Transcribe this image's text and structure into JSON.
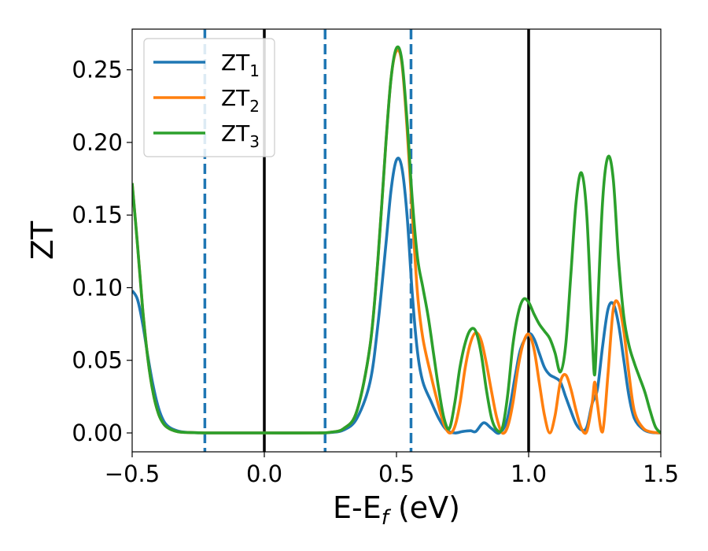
{
  "chart_data": {
    "type": "line",
    "title": "",
    "xlabel": {
      "main": "E-E",
      "sub": "f",
      "suffix": " (eV)"
    },
    "ylabel": "ZT",
    "xlim": [
      -0.5,
      1.5
    ],
    "ylim": [
      -0.013,
      0.278
    ],
    "xticks": [
      -0.5,
      0.0,
      0.5,
      1.0,
      1.5
    ],
    "xtick_labels": [
      "−0.5",
      "0.0",
      "0.5",
      "1.0",
      "1.5"
    ],
    "yticks": [
      0.0,
      0.05,
      0.1,
      0.15,
      0.2,
      0.25
    ],
    "ytick_labels": [
      "0.00",
      "0.05",
      "0.10",
      "0.15",
      "0.20",
      "0.25"
    ],
    "grid": false,
    "legend_position": "top-left",
    "series": [
      {
        "name": "ZT1",
        "label_main": "ZT",
        "label_sub": "1",
        "color": "#1f77b4",
        "x": [
          -0.5,
          -0.48,
          -0.46,
          -0.44,
          -0.42,
          -0.4,
          -0.38,
          -0.36,
          -0.33,
          -0.3,
          -0.25,
          -0.2,
          0.0,
          0.2,
          0.25,
          0.3,
          0.35,
          0.4,
          0.43,
          0.46,
          0.48,
          0.5,
          0.52,
          0.54,
          0.56,
          0.58,
          0.6,
          0.63,
          0.66,
          0.69,
          0.72,
          0.75,
          0.78,
          0.8,
          0.83,
          0.86,
          0.89,
          0.92,
          0.95,
          0.97,
          1.0,
          1.02,
          1.04,
          1.06,
          1.08,
          1.1,
          1.12,
          1.14,
          1.16,
          1.18,
          1.2,
          1.22,
          1.24,
          1.26,
          1.28,
          1.3,
          1.32,
          1.34,
          1.36,
          1.38,
          1.4,
          1.43,
          1.46,
          1.5
        ],
        "y": [
          0.098,
          0.092,
          0.075,
          0.052,
          0.032,
          0.017,
          0.008,
          0.004,
          0.0015,
          0.0005,
          0.0001,
          0.0,
          0.0,
          0.0,
          0.0003,
          0.002,
          0.01,
          0.035,
          0.075,
          0.13,
          0.168,
          0.188,
          0.183,
          0.15,
          0.095,
          0.055,
          0.035,
          0.022,
          0.01,
          0.002,
          0.0,
          0.001,
          0.0015,
          0.001,
          0.007,
          0.003,
          0.0,
          0.01,
          0.04,
          0.058,
          0.068,
          0.065,
          0.055,
          0.045,
          0.04,
          0.038,
          0.035,
          0.025,
          0.015,
          0.006,
          0.002,
          0.004,
          0.02,
          0.03,
          0.06,
          0.085,
          0.089,
          0.075,
          0.05,
          0.025,
          0.01,
          0.003,
          0.0005,
          0.0
        ]
      },
      {
        "name": "ZT2",
        "label_main": "ZT",
        "label_sub": "2",
        "color": "#ff7f0e",
        "x": [
          -0.5,
          -0.48,
          -0.46,
          -0.44,
          -0.42,
          -0.4,
          -0.38,
          -0.36,
          -0.33,
          -0.3,
          -0.25,
          -0.2,
          0.0,
          0.2,
          0.25,
          0.3,
          0.35,
          0.4,
          0.43,
          0.46,
          0.48,
          0.5,
          0.52,
          0.54,
          0.56,
          0.58,
          0.6,
          0.63,
          0.66,
          0.68,
          0.7,
          0.72,
          0.74,
          0.76,
          0.78,
          0.8,
          0.82,
          0.84,
          0.86,
          0.88,
          0.9,
          0.92,
          0.94,
          0.96,
          0.98,
          1.0,
          1.02,
          1.04,
          1.06,
          1.08,
          1.1,
          1.12,
          1.14,
          1.16,
          1.18,
          1.2,
          1.22,
          1.24,
          1.25,
          1.26,
          1.28,
          1.3,
          1.32,
          1.34,
          1.36,
          1.38,
          1.4,
          1.43,
          1.46,
          1.5
        ],
        "y": [
          0.172,
          0.13,
          0.085,
          0.05,
          0.027,
          0.013,
          0.006,
          0.003,
          0.001,
          0.0004,
          0.0001,
          0.0,
          0.0,
          0.0,
          0.0005,
          0.003,
          0.015,
          0.06,
          0.12,
          0.2,
          0.245,
          0.263,
          0.255,
          0.21,
          0.15,
          0.095,
          0.065,
          0.04,
          0.018,
          0.006,
          0.0,
          0.004,
          0.02,
          0.045,
          0.062,
          0.069,
          0.064,
          0.048,
          0.028,
          0.01,
          0.0,
          0.004,
          0.02,
          0.045,
          0.062,
          0.068,
          0.058,
          0.035,
          0.012,
          0.0,
          0.012,
          0.035,
          0.04,
          0.03,
          0.015,
          0.003,
          0.001,
          0.02,
          0.035,
          0.02,
          0.001,
          0.04,
          0.085,
          0.089,
          0.07,
          0.04,
          0.015,
          0.004,
          0.0008,
          0.0
        ]
      },
      {
        "name": "ZT3",
        "label_main": "ZT",
        "label_sub": "3",
        "color": "#2ca02c",
        "x": [
          -0.5,
          -0.48,
          -0.46,
          -0.44,
          -0.42,
          -0.4,
          -0.38,
          -0.36,
          -0.33,
          -0.3,
          -0.25,
          -0.2,
          0.0,
          0.2,
          0.25,
          0.3,
          0.35,
          0.4,
          0.43,
          0.46,
          0.48,
          0.5,
          0.52,
          0.54,
          0.56,
          0.58,
          0.6,
          0.62,
          0.64,
          0.66,
          0.68,
          0.7,
          0.72,
          0.74,
          0.76,
          0.78,
          0.8,
          0.82,
          0.84,
          0.86,
          0.88,
          0.9,
          0.92,
          0.94,
          0.96,
          0.98,
          1.0,
          1.02,
          1.04,
          1.06,
          1.08,
          1.1,
          1.12,
          1.14,
          1.16,
          1.18,
          1.2,
          1.22,
          1.24,
          1.25,
          1.26,
          1.28,
          1.3,
          1.32,
          1.34,
          1.36,
          1.38,
          1.4,
          1.42,
          1.44,
          1.46,
          1.48,
          1.5
        ],
        "y": [
          0.172,
          0.13,
          0.085,
          0.05,
          0.027,
          0.013,
          0.006,
          0.003,
          0.001,
          0.0004,
          0.0001,
          0.0,
          0.0,
          0.0,
          0.0005,
          0.003,
          0.015,
          0.06,
          0.12,
          0.2,
          0.245,
          0.265,
          0.257,
          0.215,
          0.16,
          0.12,
          0.1,
          0.08,
          0.055,
          0.03,
          0.01,
          0.003,
          0.02,
          0.045,
          0.062,
          0.071,
          0.07,
          0.055,
          0.03,
          0.01,
          0.002,
          0.003,
          0.025,
          0.06,
          0.082,
          0.092,
          0.09,
          0.082,
          0.075,
          0.07,
          0.065,
          0.055,
          0.042,
          0.06,
          0.11,
          0.16,
          0.179,
          0.15,
          0.07,
          0.04,
          0.08,
          0.16,
          0.19,
          0.175,
          0.12,
          0.08,
          0.06,
          0.048,
          0.038,
          0.028,
          0.015,
          0.004,
          0.0
        ]
      }
    ],
    "vlines": [
      {
        "x": -0.225,
        "style": "dashed",
        "color": "#1f77b4"
      },
      {
        "x": 0.0,
        "style": "solid",
        "color": "#000000"
      },
      {
        "x": 0.23,
        "style": "dashed",
        "color": "#1f77b4"
      },
      {
        "x": 0.555,
        "style": "dashed",
        "color": "#1f77b4"
      },
      {
        "x": 1.0,
        "style": "solid",
        "color": "#000000"
      }
    ]
  }
}
